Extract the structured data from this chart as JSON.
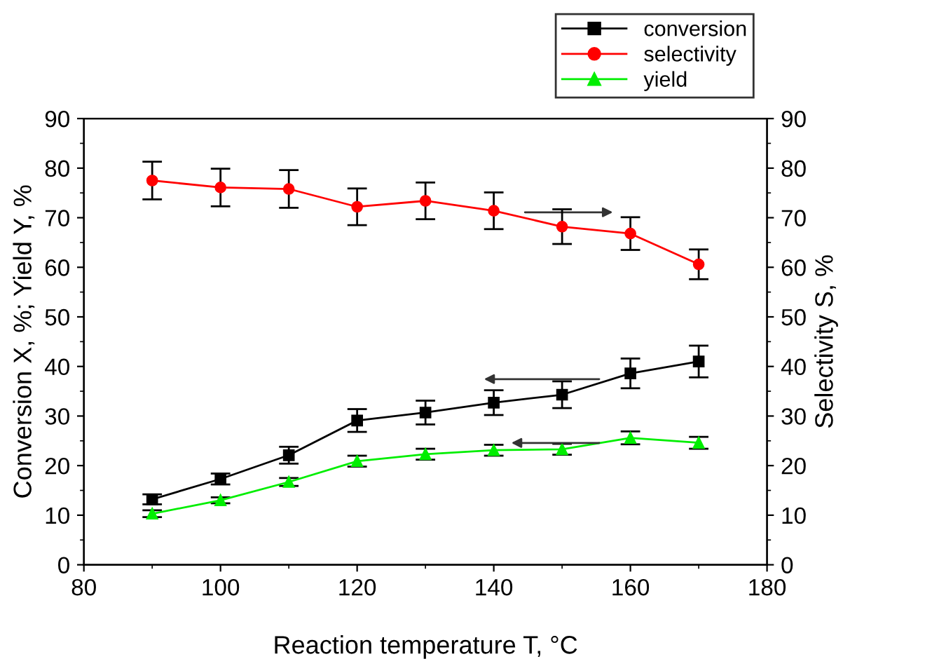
{
  "chart_data": {
    "type": "line",
    "xlabel": "Reaction temperature T, °C",
    "ylabel": "Conversion X, %; Yield Y, %",
    "y2label": "Selectivity S, %",
    "x": [
      90,
      100,
      110,
      120,
      130,
      140,
      150,
      160,
      170
    ],
    "series": [
      {
        "name": "conversion",
        "color": "#000000",
        "marker": "square",
        "values": [
          13.2,
          17.3,
          22.1,
          29.1,
          30.7,
          32.7,
          34.3,
          38.6,
          41.0
        ],
        "errors": [
          1.0,
          1.1,
          1.7,
          2.3,
          2.4,
          2.5,
          2.7,
          3.0,
          3.2
        ]
      },
      {
        "name": "selectivity",
        "color": "#ff0000",
        "marker": "circle",
        "axis": "y2",
        "values": [
          77.5,
          76.1,
          75.8,
          72.2,
          73.4,
          71.4,
          68.2,
          66.8,
          60.6
        ],
        "errors": [
          3.8,
          3.8,
          3.8,
          3.7,
          3.7,
          3.7,
          3.5,
          3.3,
          3.0
        ]
      },
      {
        "name": "yield",
        "color": "#00ee00",
        "marker": "triangle",
        "values": [
          10.3,
          13.0,
          16.7,
          20.9,
          22.3,
          23.1,
          23.3,
          25.6,
          24.6
        ],
        "errors": [
          0.7,
          0.6,
          0.8,
          1.1,
          1.1,
          1.1,
          1.1,
          1.3,
          1.2
        ]
      }
    ],
    "xlim": [
      80,
      180
    ],
    "xticks": [
      80,
      100,
      120,
      140,
      160,
      180
    ],
    "ylim": [
      0,
      90
    ],
    "yticks": [
      0,
      10,
      20,
      30,
      40,
      50,
      60,
      70,
      80,
      90
    ],
    "y2lim": [
      0,
      90
    ],
    "y2ticks": [
      0,
      10,
      20,
      30,
      40,
      50,
      60,
      70,
      80,
      90
    ],
    "legend": "top right",
    "grid": false
  }
}
